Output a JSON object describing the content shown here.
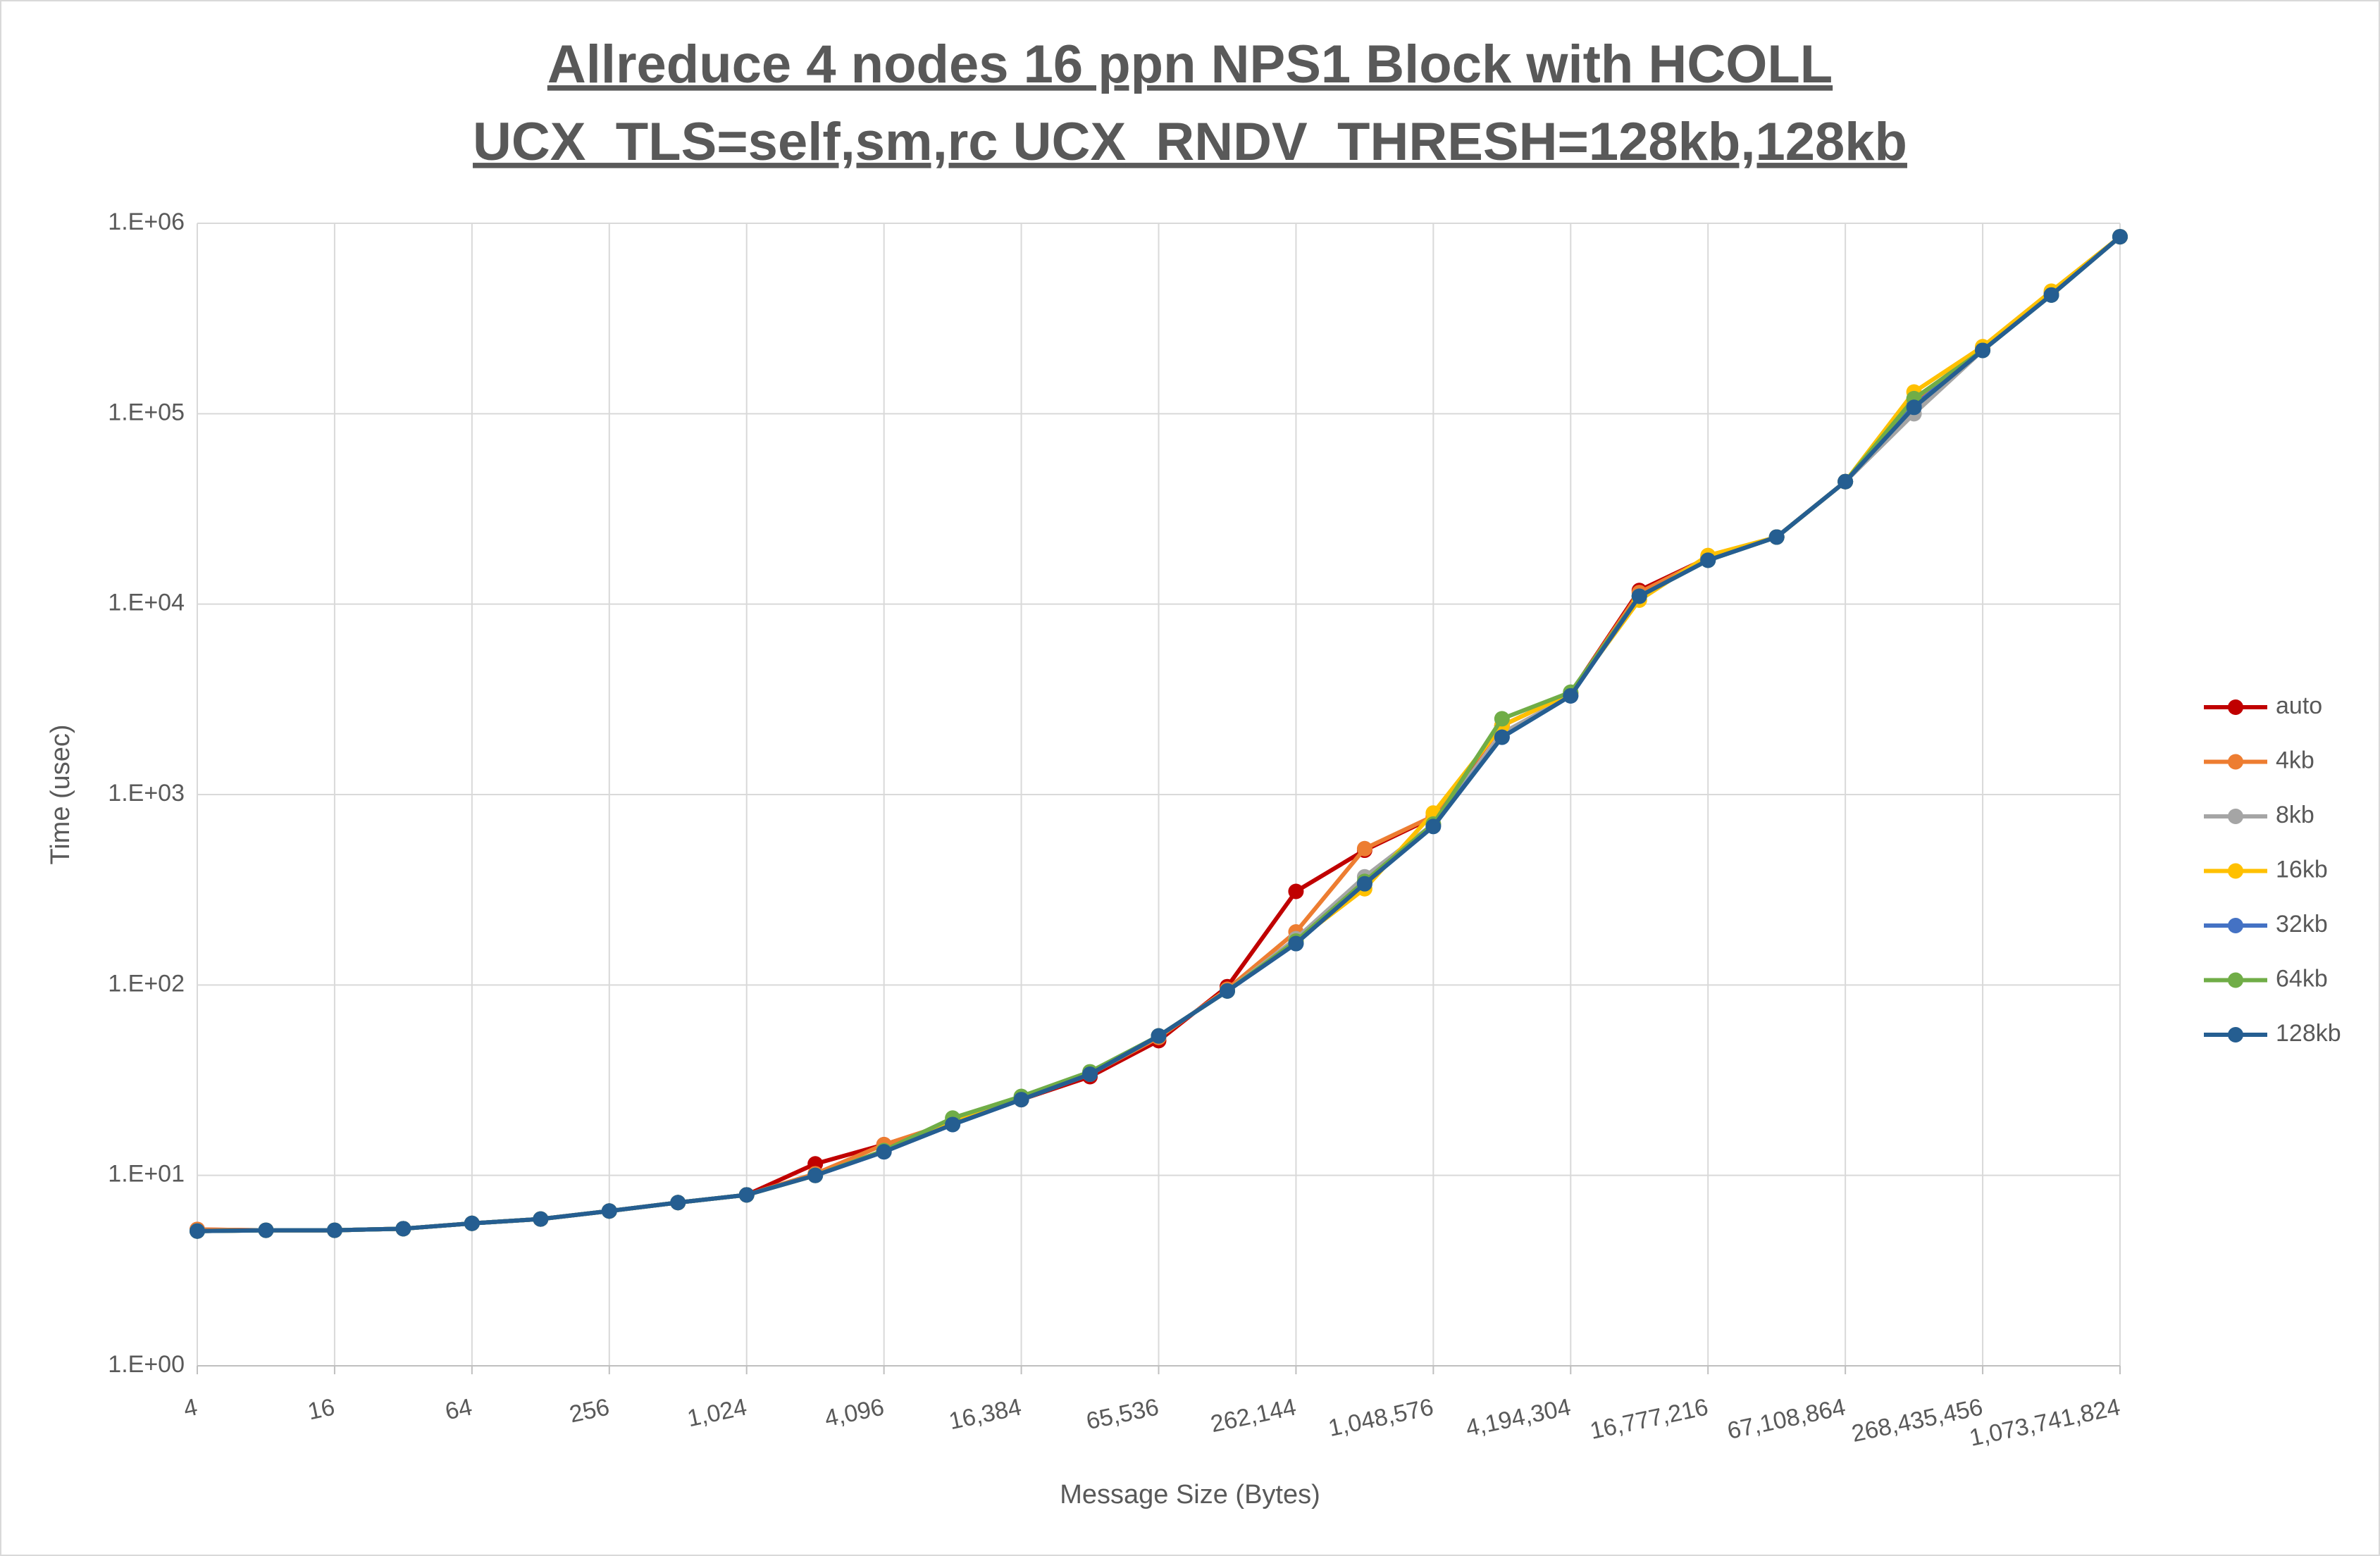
{
  "chart_data": {
    "type": "line",
    "title": [
      "Allreduce 4 nodes 16 ppn NPS1 Block with HCOLL",
      "UCX_TLS=self,sm,rc UCX_RNDV_THRESH=128kb,128kb"
    ],
    "x_label": "Message Size (Bytes)",
    "y_label": "Time (usec)",
    "x": [
      4,
      8,
      16,
      32,
      64,
      128,
      256,
      512,
      1024,
      2048,
      4096,
      8192,
      16384,
      32768,
      65536,
      131072,
      262144,
      524288,
      1048576,
      2097152,
      4194304,
      8388608,
      16777216,
      33554432,
      67108864,
      134217728,
      268435456,
      536870912,
      1073741824
    ],
    "x_log": true,
    "y_log": true,
    "grid": true,
    "legend": "right",
    "xlim": [
      4,
      1073741824
    ],
    "ylim": [
      1,
      1000000
    ],
    "xticks": [
      4,
      16,
      64,
      256,
      {
        "value": 1024,
        "label": "1,024"
      },
      {
        "value": 4096,
        "label": "4,096"
      },
      {
        "value": 16384,
        "label": "16,384"
      },
      {
        "value": 65536,
        "label": "65,536"
      },
      {
        "value": 262144,
        "label": "262,144"
      },
      {
        "value": 1048576,
        "label": "1,048,576"
      },
      {
        "value": 4194304,
        "label": "4,194,304"
      },
      {
        "value": 16777216,
        "label": "16,777,216"
      },
      {
        "value": 67108864,
        "label": "67,108,864"
      },
      {
        "value": 268435456,
        "label": "268,435,456"
      },
      {
        "value": 1073741824,
        "label": "1,073,741,824"
      }
    ],
    "yticks": [
      {
        "value": 1,
        "label": "1.E+00"
      },
      {
        "value": 10,
        "label": "1.E+01"
      },
      {
        "value": 100,
        "label": "1.E+02"
      },
      {
        "value": 1000,
        "label": "1.E+03"
      },
      {
        "value": 10000,
        "label": "1.E+04"
      },
      {
        "value": 100000,
        "label": "1.E+05"
      },
      {
        "value": 1000000,
        "label": "1.E+06"
      }
    ],
    "series": [
      {
        "name": "auto",
        "color": "#c00000",
        "values": [
          5.2,
          5.15,
          5.15,
          5.25,
          5.6,
          5.9,
          6.5,
          7.2,
          7.9,
          11.5,
          14.5,
          18.8,
          25,
          33,
          51,
          98,
          310,
          510,
          760,
          2300,
          3400,
          11800,
          17500,
          22500,
          44000,
          115000,
          220000,
          430000,
          850000
        ]
      },
      {
        "name": "4kb",
        "color": "#ed7d31",
        "values": [
          5.2,
          5.15,
          5.15,
          5.25,
          5.6,
          5.9,
          6.5,
          7.2,
          7.9,
          10.2,
          14.5,
          19,
          25,
          34,
          53,
          95,
          190,
          520,
          770,
          2300,
          3400,
          11500,
          17500,
          22500,
          44000,
          118000,
          220000,
          430000,
          850000
        ]
      },
      {
        "name": "8kb",
        "color": "#a5a5a5",
        "values": [
          5.1,
          5.15,
          5.15,
          5.25,
          5.6,
          5.9,
          6.5,
          7.2,
          7.9,
          10.0,
          13.5,
          19,
          25,
          34,
          54,
          93,
          175,
          370,
          700,
          2100,
          3300,
          11000,
          17000,
          22500,
          44000,
          100000,
          215000,
          420000,
          850000
        ]
      },
      {
        "name": "16kb",
        "color": "#ffc000",
        "values": [
          5.1,
          5.15,
          5.15,
          5.25,
          5.6,
          5.9,
          6.5,
          7.2,
          7.9,
          10.0,
          13.5,
          19,
          25,
          34,
          54,
          93,
          170,
          320,
          800,
          2300,
          3400,
          10500,
          18000,
          22500,
          44000,
          130000,
          225000,
          440000,
          850000
        ]
      },
      {
        "name": "32kb",
        "color": "#4472c4",
        "values": [
          5.1,
          5.15,
          5.15,
          5.25,
          5.6,
          5.9,
          6.5,
          7.2,
          7.9,
          10.0,
          13.3,
          18.5,
          25,
          34,
          54,
          93,
          165,
          345,
          690,
          2000,
          3300,
          11000,
          17000,
          22500,
          44000,
          110000,
          215000,
          420000,
          850000
        ]
      },
      {
        "name": "64kb",
        "color": "#70ad47",
        "values": [
          5.1,
          5.15,
          5.15,
          5.25,
          5.6,
          5.9,
          6.5,
          7.2,
          7.9,
          10.0,
          13.5,
          20,
          26,
          35,
          54,
          93,
          170,
          350,
          700,
          2500,
          3450,
          11000,
          17000,
          22500,
          44000,
          120000,
          215000,
          420000,
          850000
        ]
      },
      {
        "name": "128kb",
        "color": "#255e91",
        "values": [
          5.1,
          5.15,
          5.15,
          5.25,
          5.6,
          5.9,
          6.5,
          7.2,
          7.9,
          10.0,
          13.3,
          18.5,
          25,
          34,
          54,
          93,
          165,
          340,
          680,
          2000,
          3300,
          11000,
          17000,
          22500,
          44000,
          108000,
          215000,
          420000,
          850000
        ]
      }
    ]
  }
}
